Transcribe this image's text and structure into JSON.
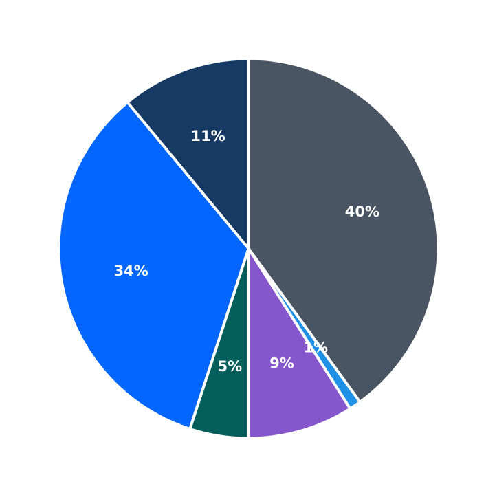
{
  "chart_data": {
    "type": "pie",
    "start": "top",
    "direction": "clockwise",
    "slices": [
      {
        "label": "40%",
        "value": 40,
        "color": "#4A5563"
      },
      {
        "label": "1%",
        "value": 1,
        "color": "#1E90E6"
      },
      {
        "label": "9%",
        "value": 9,
        "color": "#8656CC"
      },
      {
        "label": "5%",
        "value": 5,
        "color": "#035E5C"
      },
      {
        "label": "34%",
        "value": 34,
        "color": "#0366FF"
      },
      {
        "label": "11%",
        "value": 11,
        "color": "#163A63"
      }
    ]
  }
}
